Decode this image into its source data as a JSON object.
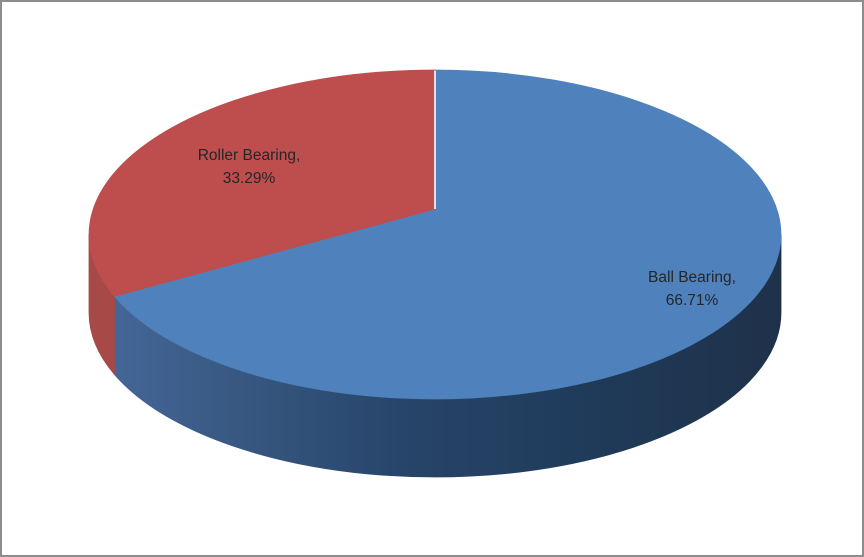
{
  "frame": {
    "background": "#FFFFFF",
    "border_color": "#8C8C8C"
  },
  "chart_data": {
    "type": "pie",
    "projection": "3d",
    "title": "",
    "legend": "none",
    "start_angle_deg": 0,
    "direction": "clockwise",
    "label_text_color": "#262626",
    "separator_color": "#ECECF1",
    "slices": [
      {
        "label": "Ball Bearing",
        "value_pct": 66.71,
        "data_label": {
          "line1": "Ball Bearing,",
          "line2": "66.71%"
        },
        "top_color": "#4F81BD",
        "side_gradient": [
          [
            "0%",
            "#47699C"
          ],
          [
            "18%",
            "#3A5B85"
          ],
          [
            "45%",
            "#27456A"
          ],
          [
            "75%",
            "#1F3A58"
          ],
          [
            "100%",
            "#1F3149"
          ]
        ]
      },
      {
        "label": "Roller Bearing",
        "value_pct": 33.29,
        "data_label": {
          "line1": "Roller Bearing,",
          "line2": "33.29%"
        },
        "top_color": "#BE4E4D",
        "side_gradient": [
          [
            "0%",
            "#A74946"
          ],
          [
            "100%",
            "#9C403E"
          ]
        ]
      }
    ]
  }
}
